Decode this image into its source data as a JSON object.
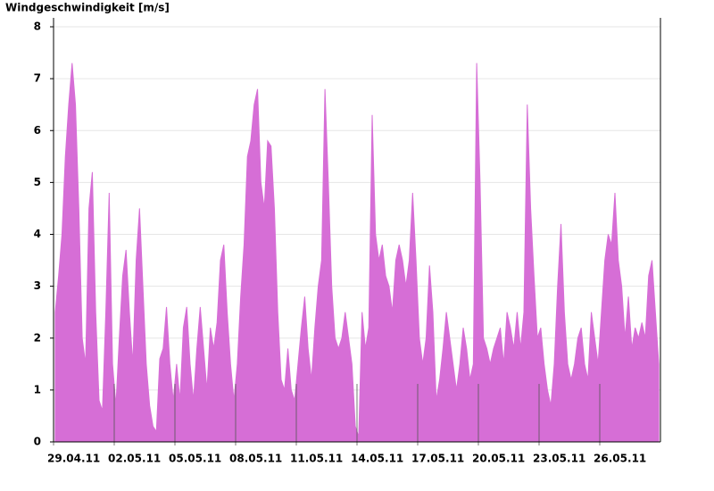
{
  "chart_data": {
    "type": "area",
    "y_label": "Windgeschwindigkeit [m/s]",
    "color": "#d66ed6",
    "grid": true,
    "ylim": [
      0,
      8
    ],
    "yticks": [
      0,
      1,
      2,
      3,
      4,
      5,
      6,
      7,
      8
    ],
    "xlim": [
      0,
      30
    ],
    "xticks": [
      {
        "value": 0,
        "label": "29.04.11"
      },
      {
        "value": 3,
        "label": "02.05.11"
      },
      {
        "value": 6,
        "label": "05.05.11"
      },
      {
        "value": 9,
        "label": "08.05.11"
      },
      {
        "value": 12,
        "label": "11.05.11"
      },
      {
        "value": 15,
        "label": "14.05.11"
      },
      {
        "value": 18,
        "label": "17.05.11"
      },
      {
        "value": 21,
        "label": "20.05.11"
      },
      {
        "value": 24,
        "label": "23.05.11"
      },
      {
        "value": 27,
        "label": "26.05.11"
      }
    ],
    "values": [
      2.5,
      3.2,
      4,
      5.5,
      6.5,
      7.3,
      6.5,
      4.5,
      2,
      1.5,
      4.5,
      5.2,
      2.5,
      0.8,
      0.6,
      2.5,
      4.8,
      1.5,
      0.7,
      2,
      3.2,
      3.7,
      2.5,
      1.5,
      3.5,
      4.5,
      3,
      1.5,
      0.7,
      0.3,
      0.2,
      1.6,
      1.8,
      2.6,
      1.5,
      0.8,
      1.5,
      0.8,
      2.2,
      2.6,
      1.5,
      0.8,
      1.8,
      2.6,
      1.8,
      1,
      2.2,
      1.8,
      2.3,
      3.5,
      3.8,
      2.5,
      1.5,
      0.8,
      1.5,
      2.8,
      3.8,
      5.5,
      5.8,
      6.5,
      6.8,
      5,
      4.5,
      5.8,
      5.7,
      4.5,
      2.5,
      1.2,
      1,
      1.8,
      1,
      0.8,
      1.5,
      2.2,
      2.8,
      1.8,
      1.2,
      2.2,
      3,
      3.5,
      6.8,
      5,
      3,
      2,
      1.8,
      2,
      2.5,
      2,
      1.5,
      0.3,
      0.1,
      2.5,
      1.8,
      2.2,
      6.3,
      4,
      3.5,
      3.8,
      3.2,
      3,
      2.5,
      3.5,
      3.8,
      3.5,
      3,
      3.5,
      4.8,
      3.5,
      2,
      1.5,
      2,
      3.4,
      2.5,
      0.8,
      1.2,
      1.8,
      2.5,
      2,
      1.5,
      1,
      1.5,
      2.2,
      1.8,
      1.2,
      1.5,
      7.3,
      5,
      2,
      1.8,
      1.5,
      1.8,
      2,
      2.2,
      1.5,
      2.5,
      2.2,
      1.8,
      2.5,
      1.8,
      2.5,
      6.5,
      4.5,
      3.2,
      2,
      2.2,
      1.5,
      1,
      0.7,
      1.5,
      3,
      4.2,
      2.5,
      1.5,
      1.2,
      1.5,
      2,
      2.2,
      1.5,
      1.2,
      2.5,
      2,
      1.5,
      2.5,
      3.5,
      4,
      3.8,
      4.8,
      3.5,
      3,
      2,
      2.8,
      1.8,
      2.2,
      2,
      2.3,
      2,
      3.2,
      3.5,
      2.5,
      1.5
    ]
  }
}
